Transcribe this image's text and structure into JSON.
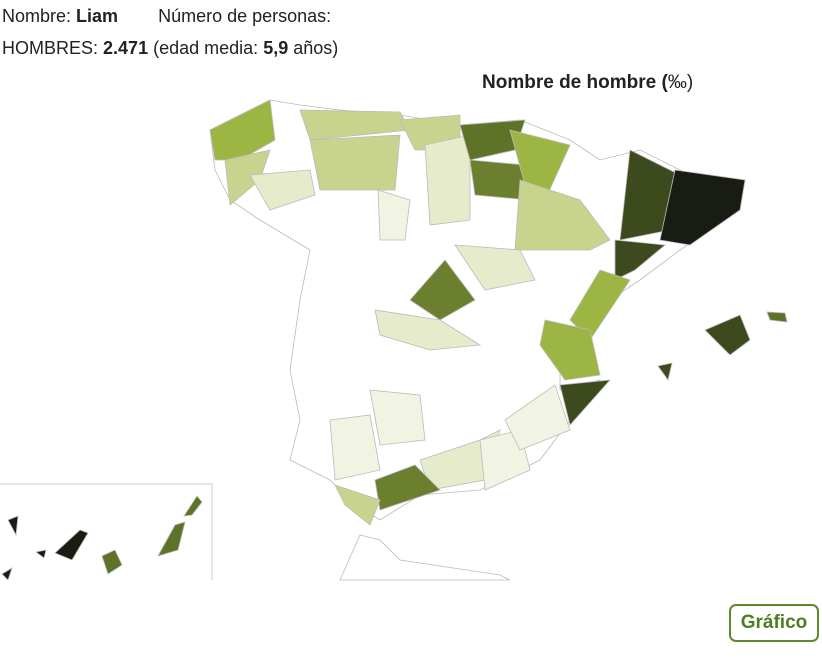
{
  "header": {
    "name_label": "Nombre:",
    "name": "Liam",
    "count_label": "Número de personas:",
    "group_label": "HOMBRES:",
    "count": "2.471",
    "age_label": "(edad media:",
    "age": "5,9",
    "age_unit": "años)"
  },
  "map": {
    "title_text": "Nombre de hombre (",
    "title_unit": "‰)"
  },
  "button": "Gráfico"
}
